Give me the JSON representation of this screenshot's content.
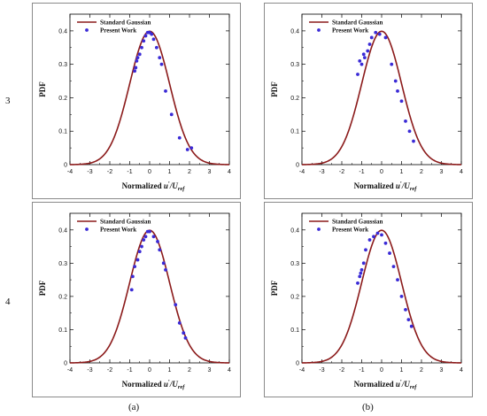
{
  "row_labels": [
    "3",
    "4"
  ],
  "col_labels": [
    "(a)",
    "(b)"
  ],
  "colors": {
    "gaussian": "#8b1a1a",
    "points": "#3a2ad6",
    "frame": "#000000"
  },
  "chart_data": [
    {
      "id": "a3",
      "type": "line+scatter",
      "xlabel": "Normalized",
      "xlabel_var": "u",
      "xlabel_prime": "'",
      "xlabel_den": "/U",
      "xlabel_sub": "ref",
      "ylabel": "PDF",
      "xlim": [
        -4,
        4
      ],
      "ylim": [
        0,
        0.45
      ],
      "xticks": [
        -4,
        -3,
        -2,
        -1,
        0,
        1,
        2,
        3,
        4
      ],
      "yticks": [
        0,
        0.1,
        0.2,
        0.3,
        0.4
      ],
      "legend": {
        "placement": "top-left",
        "entries": [
          "Standard Gaussian",
          "Present Work"
        ]
      },
      "series": [
        {
          "name": "Standard Gaussian",
          "kind": "line",
          "function": "standard normal pdf"
        },
        {
          "name": "Present Work",
          "kind": "scatter",
          "x": [
            -0.75,
            -0.7,
            -0.65,
            -0.6,
            -0.5,
            -0.4,
            -0.3,
            -0.2,
            -0.1,
            0.0,
            0.1,
            0.2,
            0.35,
            0.5,
            0.6,
            0.8,
            1.1,
            1.5,
            1.9,
            2.1
          ],
          "y": [
            0.28,
            0.29,
            0.31,
            0.32,
            0.33,
            0.35,
            0.37,
            0.385,
            0.395,
            0.395,
            0.39,
            0.375,
            0.35,
            0.32,
            0.3,
            0.22,
            0.15,
            0.08,
            0.045,
            0.05
          ]
        }
      ]
    },
    {
      "id": "b3",
      "type": "line+scatter",
      "xlabel": "Normalized",
      "xlabel_var": "u",
      "xlabel_prime": "'",
      "xlabel_den": "/U",
      "xlabel_sub": "ref",
      "ylabel": "PDF",
      "xlim": [
        -4,
        4
      ],
      "ylim": [
        0,
        0.45
      ],
      "xticks": [
        -4,
        -3,
        -2,
        -1,
        0,
        1,
        2,
        3,
        4
      ],
      "yticks": [
        0,
        0.1,
        0.2,
        0.3,
        0.4
      ],
      "legend": {
        "placement": "top-left",
        "entries": [
          "Standard Gaussian",
          "Present Work"
        ]
      },
      "series": [
        {
          "name": "Standard Gaussian",
          "kind": "line",
          "function": "standard normal pdf"
        },
        {
          "name": "Present Work",
          "kind": "scatter",
          "x": [
            -1.2,
            -1.1,
            -1.0,
            -0.9,
            -0.85,
            -0.7,
            -0.6,
            -0.5,
            -0.3,
            -0.1,
            0.2,
            0.5,
            0.7,
            0.8,
            1.0,
            1.2,
            1.4,
            1.6
          ],
          "y": [
            0.27,
            0.31,
            0.3,
            0.33,
            0.32,
            0.34,
            0.36,
            0.38,
            0.395,
            0.39,
            0.38,
            0.3,
            0.25,
            0.22,
            0.19,
            0.13,
            0.1,
            0.07
          ]
        }
      ]
    },
    {
      "id": "a4",
      "type": "line+scatter",
      "xlabel": "Normalized",
      "xlabel_var": "u",
      "xlabel_prime": "'",
      "xlabel_den": "/U",
      "xlabel_sub": "ref",
      "ylabel": "PDF",
      "xlim": [
        -4,
        4
      ],
      "ylim": [
        0,
        0.45
      ],
      "xticks": [
        -4,
        -3,
        -2,
        -1,
        0,
        1,
        2,
        3,
        4
      ],
      "yticks": [
        0,
        0.1,
        0.2,
        0.3,
        0.4
      ],
      "legend": {
        "placement": "top-left",
        "entries": [
          "Standard Gaussian",
          "Present Work"
        ]
      },
      "series": [
        {
          "name": "Standard Gaussian",
          "kind": "line",
          "function": "standard normal pdf"
        },
        {
          "name": "Present Work",
          "kind": "scatter",
          "x": [
            -0.9,
            -0.85,
            -0.75,
            -0.6,
            -0.5,
            -0.4,
            -0.3,
            -0.2,
            -0.1,
            0.0,
            0.2,
            0.4,
            0.5,
            0.7,
            0.8,
            1.3,
            1.5,
            1.7,
            1.8
          ],
          "y": [
            0.22,
            0.26,
            0.29,
            0.31,
            0.335,
            0.35,
            0.37,
            0.38,
            0.395,
            0.395,
            0.38,
            0.365,
            0.34,
            0.3,
            0.28,
            0.175,
            0.12,
            0.09,
            0.075
          ]
        }
      ]
    },
    {
      "id": "b4",
      "type": "line+scatter",
      "xlabel": "Normalized",
      "xlabel_var": "u",
      "xlabel_prime": "'",
      "xlabel_den": "/U",
      "xlabel_sub": "ref",
      "ylabel": "PDF",
      "xlim": [
        -4,
        4
      ],
      "ylim": [
        0,
        0.45
      ],
      "xticks": [
        -4,
        -3,
        -2,
        -1,
        0,
        1,
        2,
        3,
        4
      ],
      "yticks": [
        0,
        0.1,
        0.2,
        0.3,
        0.4
      ],
      "legend": {
        "placement": "top-left",
        "entries": [
          "Standard Gaussian",
          "Present Work"
        ]
      },
      "series": [
        {
          "name": "Standard Gaussian",
          "kind": "line",
          "function": "standard normal pdf"
        },
        {
          "name": "Present Work",
          "kind": "scatter",
          "x": [
            -1.2,
            -1.1,
            -1.05,
            -1.0,
            -0.9,
            -0.8,
            -0.6,
            -0.4,
            -0.2,
            0.0,
            0.2,
            0.4,
            0.6,
            0.8,
            1.0,
            1.2,
            1.35,
            1.5
          ],
          "y": [
            0.24,
            0.26,
            0.27,
            0.28,
            0.3,
            0.34,
            0.37,
            0.38,
            0.39,
            0.385,
            0.36,
            0.33,
            0.29,
            0.25,
            0.2,
            0.16,
            0.13,
            0.11
          ]
        }
      ]
    }
  ]
}
